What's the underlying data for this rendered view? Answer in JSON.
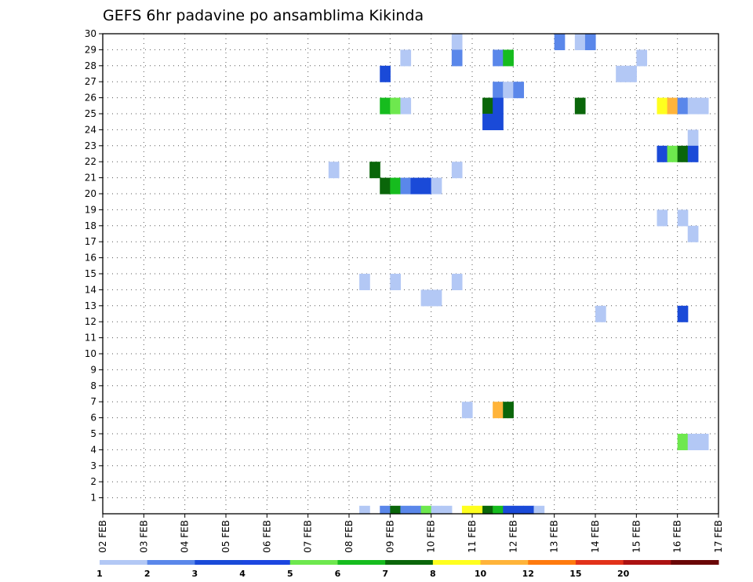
{
  "chart_data": {
    "type": "heatmap",
    "title": "GEFS 6hr padavine po ansamblima Kikinda",
    "y_tick_labels": [
      "1",
      "2",
      "3",
      "4",
      "5",
      "6",
      "7",
      "8",
      "9",
      "10",
      "11",
      "12",
      "13",
      "14",
      "15",
      "16",
      "17",
      "18",
      "19",
      "20",
      "21",
      "22",
      "23",
      "24",
      "25",
      "26",
      "27",
      "28",
      "29",
      "30"
    ],
    "x_tick_labels": [
      "02 FEB",
      "03 FEB",
      "04 FEB",
      "05 FEB",
      "06 FEB",
      "07 FEB",
      "08 FEB",
      "09 FEB",
      "10 FEB",
      "11 FEB",
      "12 FEB",
      "13 FEB",
      "14 FEB",
      "15 FEB",
      "16 FEB",
      "17 FEB"
    ],
    "x_range_days": [
      2,
      17
    ],
    "y_range_members": [
      0,
      30
    ],
    "grid": true,
    "colorbar": {
      "position": "bottom",
      "labels": [
        "1",
        "2",
        "3",
        "4",
        "5",
        "6",
        "7",
        "8",
        "10",
        "12",
        "15",
        "20"
      ],
      "colors": [
        "#b3c8f5",
        "#5a87ea",
        "#1a4ad8",
        "#1c46e0",
        "#6ee84e",
        "#16bc1e",
        "#0a660a",
        "#ffff1e",
        "#ffb43a",
        "#ff7a0e",
        "#e2321a",
        "#ac1212",
        "#6a0606"
      ]
    },
    "cells": [
      {
        "m": 30,
        "t": "10.5",
        "v": 1.2
      },
      {
        "m": 30,
        "t": "13.0",
        "v": 2.5
      },
      {
        "m": 30,
        "t": "13.5",
        "v": 1.2
      },
      {
        "m": 30,
        "t": "13.75",
        "v": 2.2
      },
      {
        "m": 29,
        "t": "9.25",
        "v": 1.2
      },
      {
        "m": 29,
        "t": "10.5",
        "v": 2.3
      },
      {
        "m": 29,
        "t": "11.5",
        "v": 2.4
      },
      {
        "m": 29,
        "t": "11.75",
        "v": 6
      },
      {
        "m": 29,
        "t": "15.0",
        "v": 1.2
      },
      {
        "m": 28,
        "t": "8.75",
        "v": 3.5
      },
      {
        "m": 28,
        "t": "14.5",
        "v": 1.3
      },
      {
        "m": 28,
        "t": "14.75",
        "v": 1.3
      },
      {
        "m": 27,
        "t": "11.5",
        "v": 2.2
      },
      {
        "m": 27,
        "t": "11.75",
        "v": 1.4
      },
      {
        "m": 27,
        "t": "12.0",
        "v": 2.4
      },
      {
        "m": 26,
        "t": "8.75",
        "v": 6
      },
      {
        "m": 26,
        "t": "9.0",
        "v": 5
      },
      {
        "m": 26,
        "t": "9.25",
        "v": 1.2
      },
      {
        "m": 26,
        "t": "11.25",
        "v": 7
      },
      {
        "m": 26,
        "t": "11.5",
        "v": 3.5
      },
      {
        "m": 26,
        "t": "13.5",
        "v": 7
      },
      {
        "m": 26,
        "t": "15.5",
        "v": 9
      },
      {
        "m": 26,
        "t": "15.75",
        "v": 11
      },
      {
        "m": 26,
        "t": "16.0",
        "v": 2.3
      },
      {
        "m": 26,
        "t": "16.25",
        "v": 1.2
      },
      {
        "m": 26,
        "t": "16.5",
        "v": 1.2
      },
      {
        "m": 25,
        "t": "11.25",
        "v": 3.5
      },
      {
        "m": 25,
        "t": "11.5",
        "v": 3.5
      },
      {
        "m": 24,
        "t": "16.25",
        "v": 1.2
      },
      {
        "m": 23,
        "t": "15.5",
        "v": 3.5
      },
      {
        "m": 23,
        "t": "15.75",
        "v": 5
      },
      {
        "m": 23,
        "t": "16.0",
        "v": 7.5
      },
      {
        "m": 23,
        "t": "16.25",
        "v": 3.5
      },
      {
        "m": 22,
        "t": "7.5",
        "v": 1.2
      },
      {
        "m": 22,
        "t": "8.5",
        "v": 7.5
      },
      {
        "m": 22,
        "t": "10.5",
        "v": 1.2
      },
      {
        "m": 21,
        "t": "8.75",
        "v": 7.5
      },
      {
        "m": 21,
        "t": "9.0",
        "v": 6
      },
      {
        "m": 21,
        "t": "9.25",
        "v": 2.3
      },
      {
        "m": 21,
        "t": "9.5",
        "v": 3.5
      },
      {
        "m": 21,
        "t": "9.75",
        "v": 3.5
      },
      {
        "m": 21,
        "t": "10.0",
        "v": 1.2
      },
      {
        "m": 19,
        "t": "15.5",
        "v": 1.2
      },
      {
        "m": 19,
        "t": "16.0",
        "v": 1.2
      },
      {
        "m": 18,
        "t": "16.25",
        "v": 1.2
      },
      {
        "m": 15,
        "t": "8.25",
        "v": 1.2
      },
      {
        "m": 15,
        "t": "9.0",
        "v": 1.2
      },
      {
        "m": 15,
        "t": "10.5",
        "v": 1.2
      },
      {
        "m": 14,
        "t": "9.75",
        "v": 1.2
      },
      {
        "m": 14,
        "t": "10.0",
        "v": 1.2
      },
      {
        "m": 13,
        "t": "14.0",
        "v": 1.2
      },
      {
        "m": 13,
        "t": "16.0",
        "v": 3.5
      },
      {
        "m": 7,
        "t": "10.75",
        "v": 1.2
      },
      {
        "m": 7,
        "t": "11.5",
        "v": 11
      },
      {
        "m": 7,
        "t": "11.75",
        "v": 7.5
      },
      {
        "m": 5,
        "t": "16.0",
        "v": 5
      },
      {
        "m": 5,
        "t": "16.25",
        "v": 1.2
      },
      {
        "m": 5,
        "t": "16.5",
        "v": 1.2
      },
      {
        "m": 0,
        "t": "8.25",
        "v": 1.2
      },
      {
        "m": 0,
        "t": "8.75",
        "v": 2.3
      },
      {
        "m": 0,
        "t": "9.0",
        "v": 7
      },
      {
        "m": 0,
        "t": "9.25",
        "v": 2.3
      },
      {
        "m": 0,
        "t": "9.5",
        "v": 2.3
      },
      {
        "m": 0,
        "t": "9.75",
        "v": 5
      },
      {
        "m": 0,
        "t": "10.0",
        "v": 1.2
      },
      {
        "m": 0,
        "t": "10.25",
        "v": 1.2
      },
      {
        "m": 0,
        "t": "10.75",
        "v": 9
      },
      {
        "m": 0,
        "t": "11.0",
        "v": 9
      },
      {
        "m": 0,
        "t": "11.25",
        "v": 7
      },
      {
        "m": 0,
        "t": "11.5",
        "v": 6
      },
      {
        "m": 0,
        "t": "11.75",
        "v": 3.5
      },
      {
        "m": 0,
        "t": "12.0",
        "v": 3.5
      },
      {
        "m": 0,
        "t": "12.25",
        "v": 3.5
      },
      {
        "m": 0,
        "t": "12.5",
        "v": 1.2
      }
    ]
  }
}
